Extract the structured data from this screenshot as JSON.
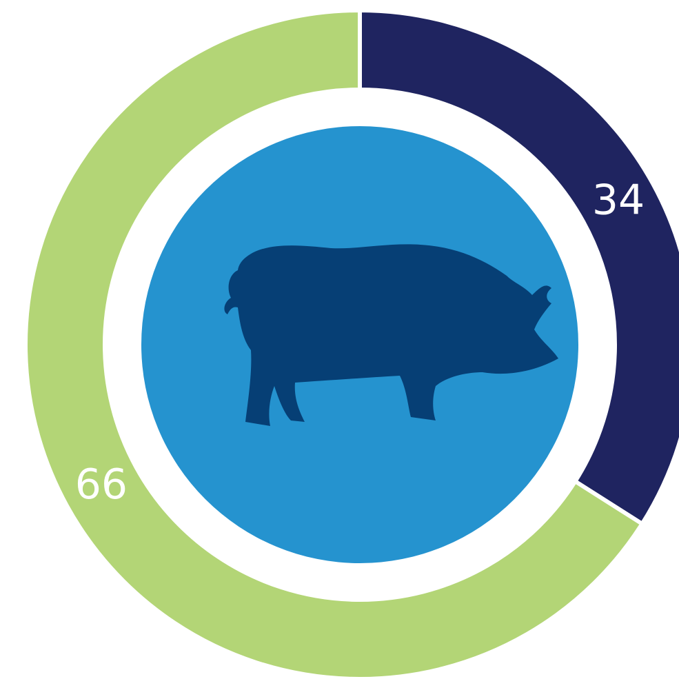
{
  "chart_data": {
    "type": "donut",
    "values": [
      34,
      66
    ],
    "colors": [
      "#1f2460",
      "#b3d576"
    ]
  }
}
